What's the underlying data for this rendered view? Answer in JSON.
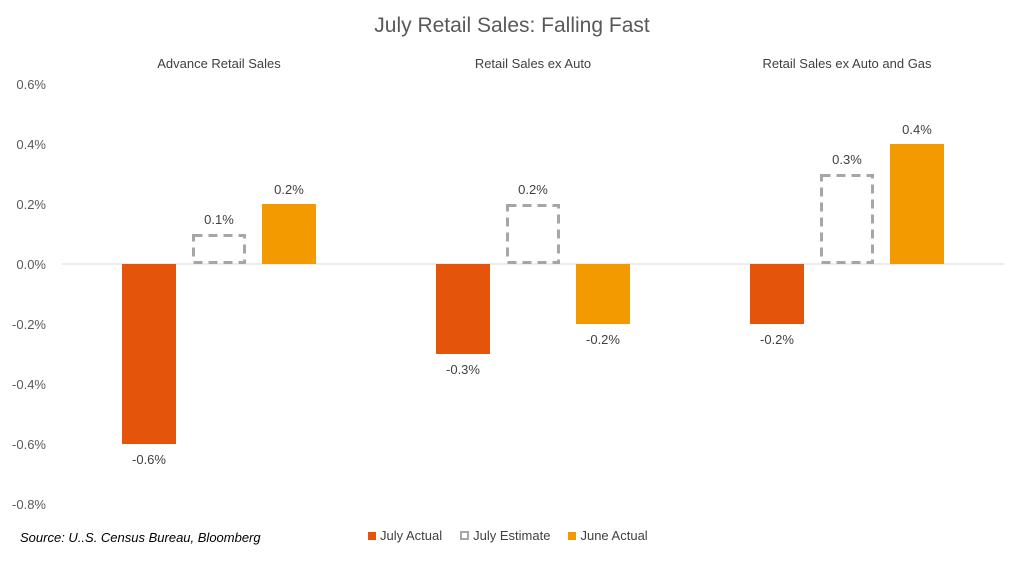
{
  "chart_data": {
    "type": "bar",
    "title": "July Retail Sales: Falling Fast",
    "categories": [
      "Advance Retail Sales",
      "Retail Sales ex Auto",
      "Retail Sales ex Auto and Gas"
    ],
    "series": [
      {
        "name": "July Actual",
        "values": [
          -0.6,
          -0.3,
          -0.2
        ],
        "labels": [
          "-0.6%",
          "-0.3%",
          "-0.2%"
        ],
        "color": "#e5540b",
        "style": "solid"
      },
      {
        "name": "July Estimate",
        "values": [
          0.1,
          0.2,
          0.3
        ],
        "labels": [
          "0.1%",
          "0.2%",
          "0.3%"
        ],
        "color": "#a6a6a6",
        "style": "dashed-outline"
      },
      {
        "name": "June Actual",
        "values": [
          0.2,
          -0.2,
          0.4
        ],
        "labels": [
          "0.2%",
          "-0.2%",
          "0.4%"
        ],
        "color": "#f29a00",
        "style": "solid"
      }
    ],
    "ylim": [
      -0.8,
      0.6
    ],
    "yticks": [
      0.6,
      0.4,
      0.2,
      0.0,
      -0.2,
      -0.4,
      -0.6,
      -0.8
    ],
    "ytick_labels": [
      "0.6%",
      "0.4%",
      "0.2%",
      "0.0%",
      "-0.2%",
      "-0.4%",
      "-0.6%",
      "-0.8%"
    ],
    "grid": false,
    "legend_position": "bottom"
  },
  "source": "Source: U..S. Census Bureau, Bloomberg"
}
